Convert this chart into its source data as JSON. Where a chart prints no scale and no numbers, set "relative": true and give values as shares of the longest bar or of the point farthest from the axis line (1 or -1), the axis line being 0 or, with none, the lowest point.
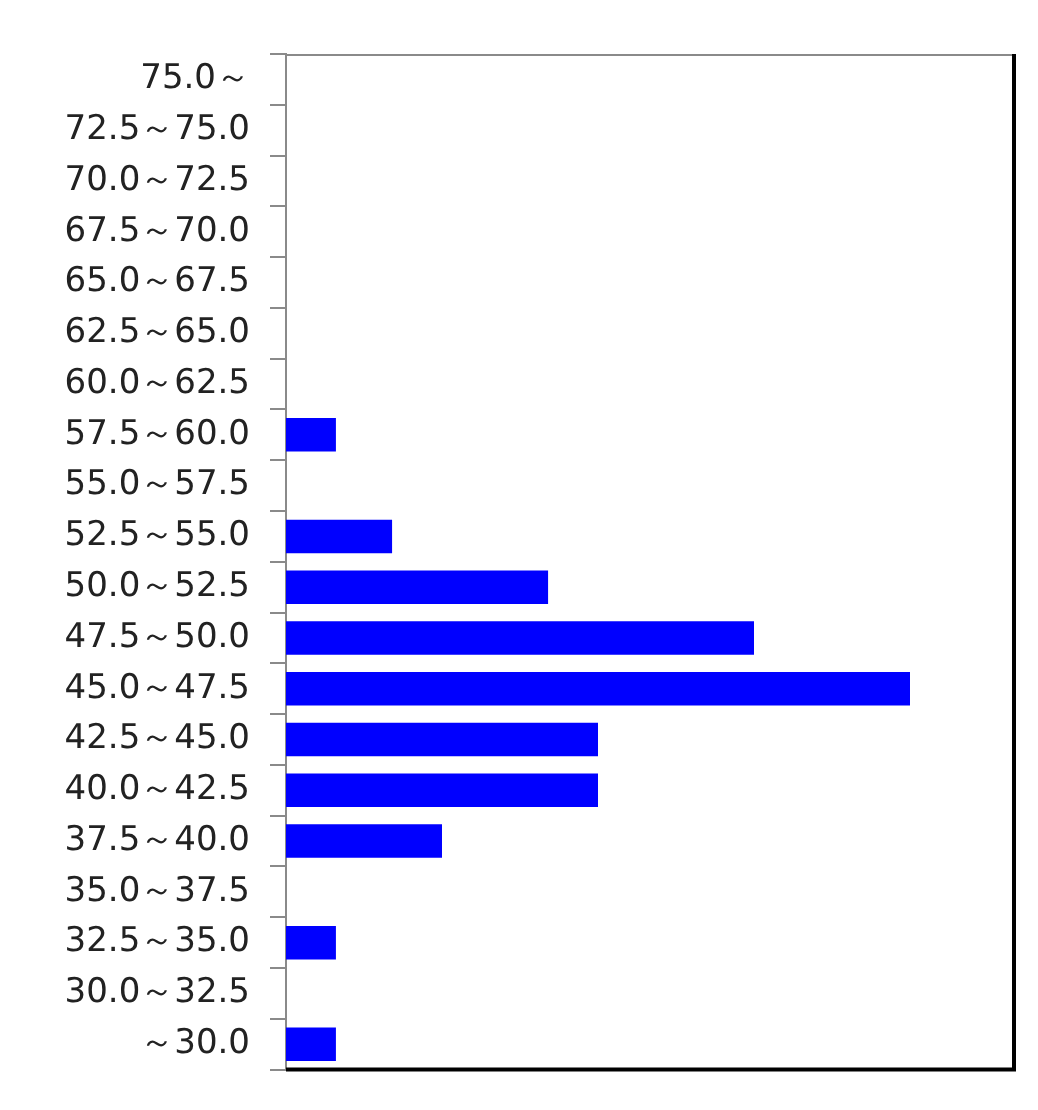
{
  "chart_data": {
    "type": "bar",
    "orientation": "horizontal",
    "relative": true,
    "categories": [
      "75.0～",
      "72.5～75.0",
      "70.0～72.5",
      "67.5～70.0",
      "65.0～67.5",
      "62.5～65.0",
      "60.0～62.5",
      "57.5～60.0",
      "55.0～57.5",
      "52.5～55.0",
      "50.0～52.5",
      "47.5～50.0",
      "45.0～47.5",
      "42.5～45.0",
      "40.0～42.5",
      "37.5～40.0",
      "35.0～37.5",
      "32.5～35.0",
      "30.0～32.5",
      "～30.0"
    ],
    "values": [
      0,
      0,
      0,
      0,
      0,
      0,
      0,
      0.08,
      0,
      0.17,
      0.42,
      0.75,
      1,
      0.5,
      0.5,
      0.25,
      0,
      0.08,
      0,
      0.08
    ],
    "color": "#0000ff"
  }
}
